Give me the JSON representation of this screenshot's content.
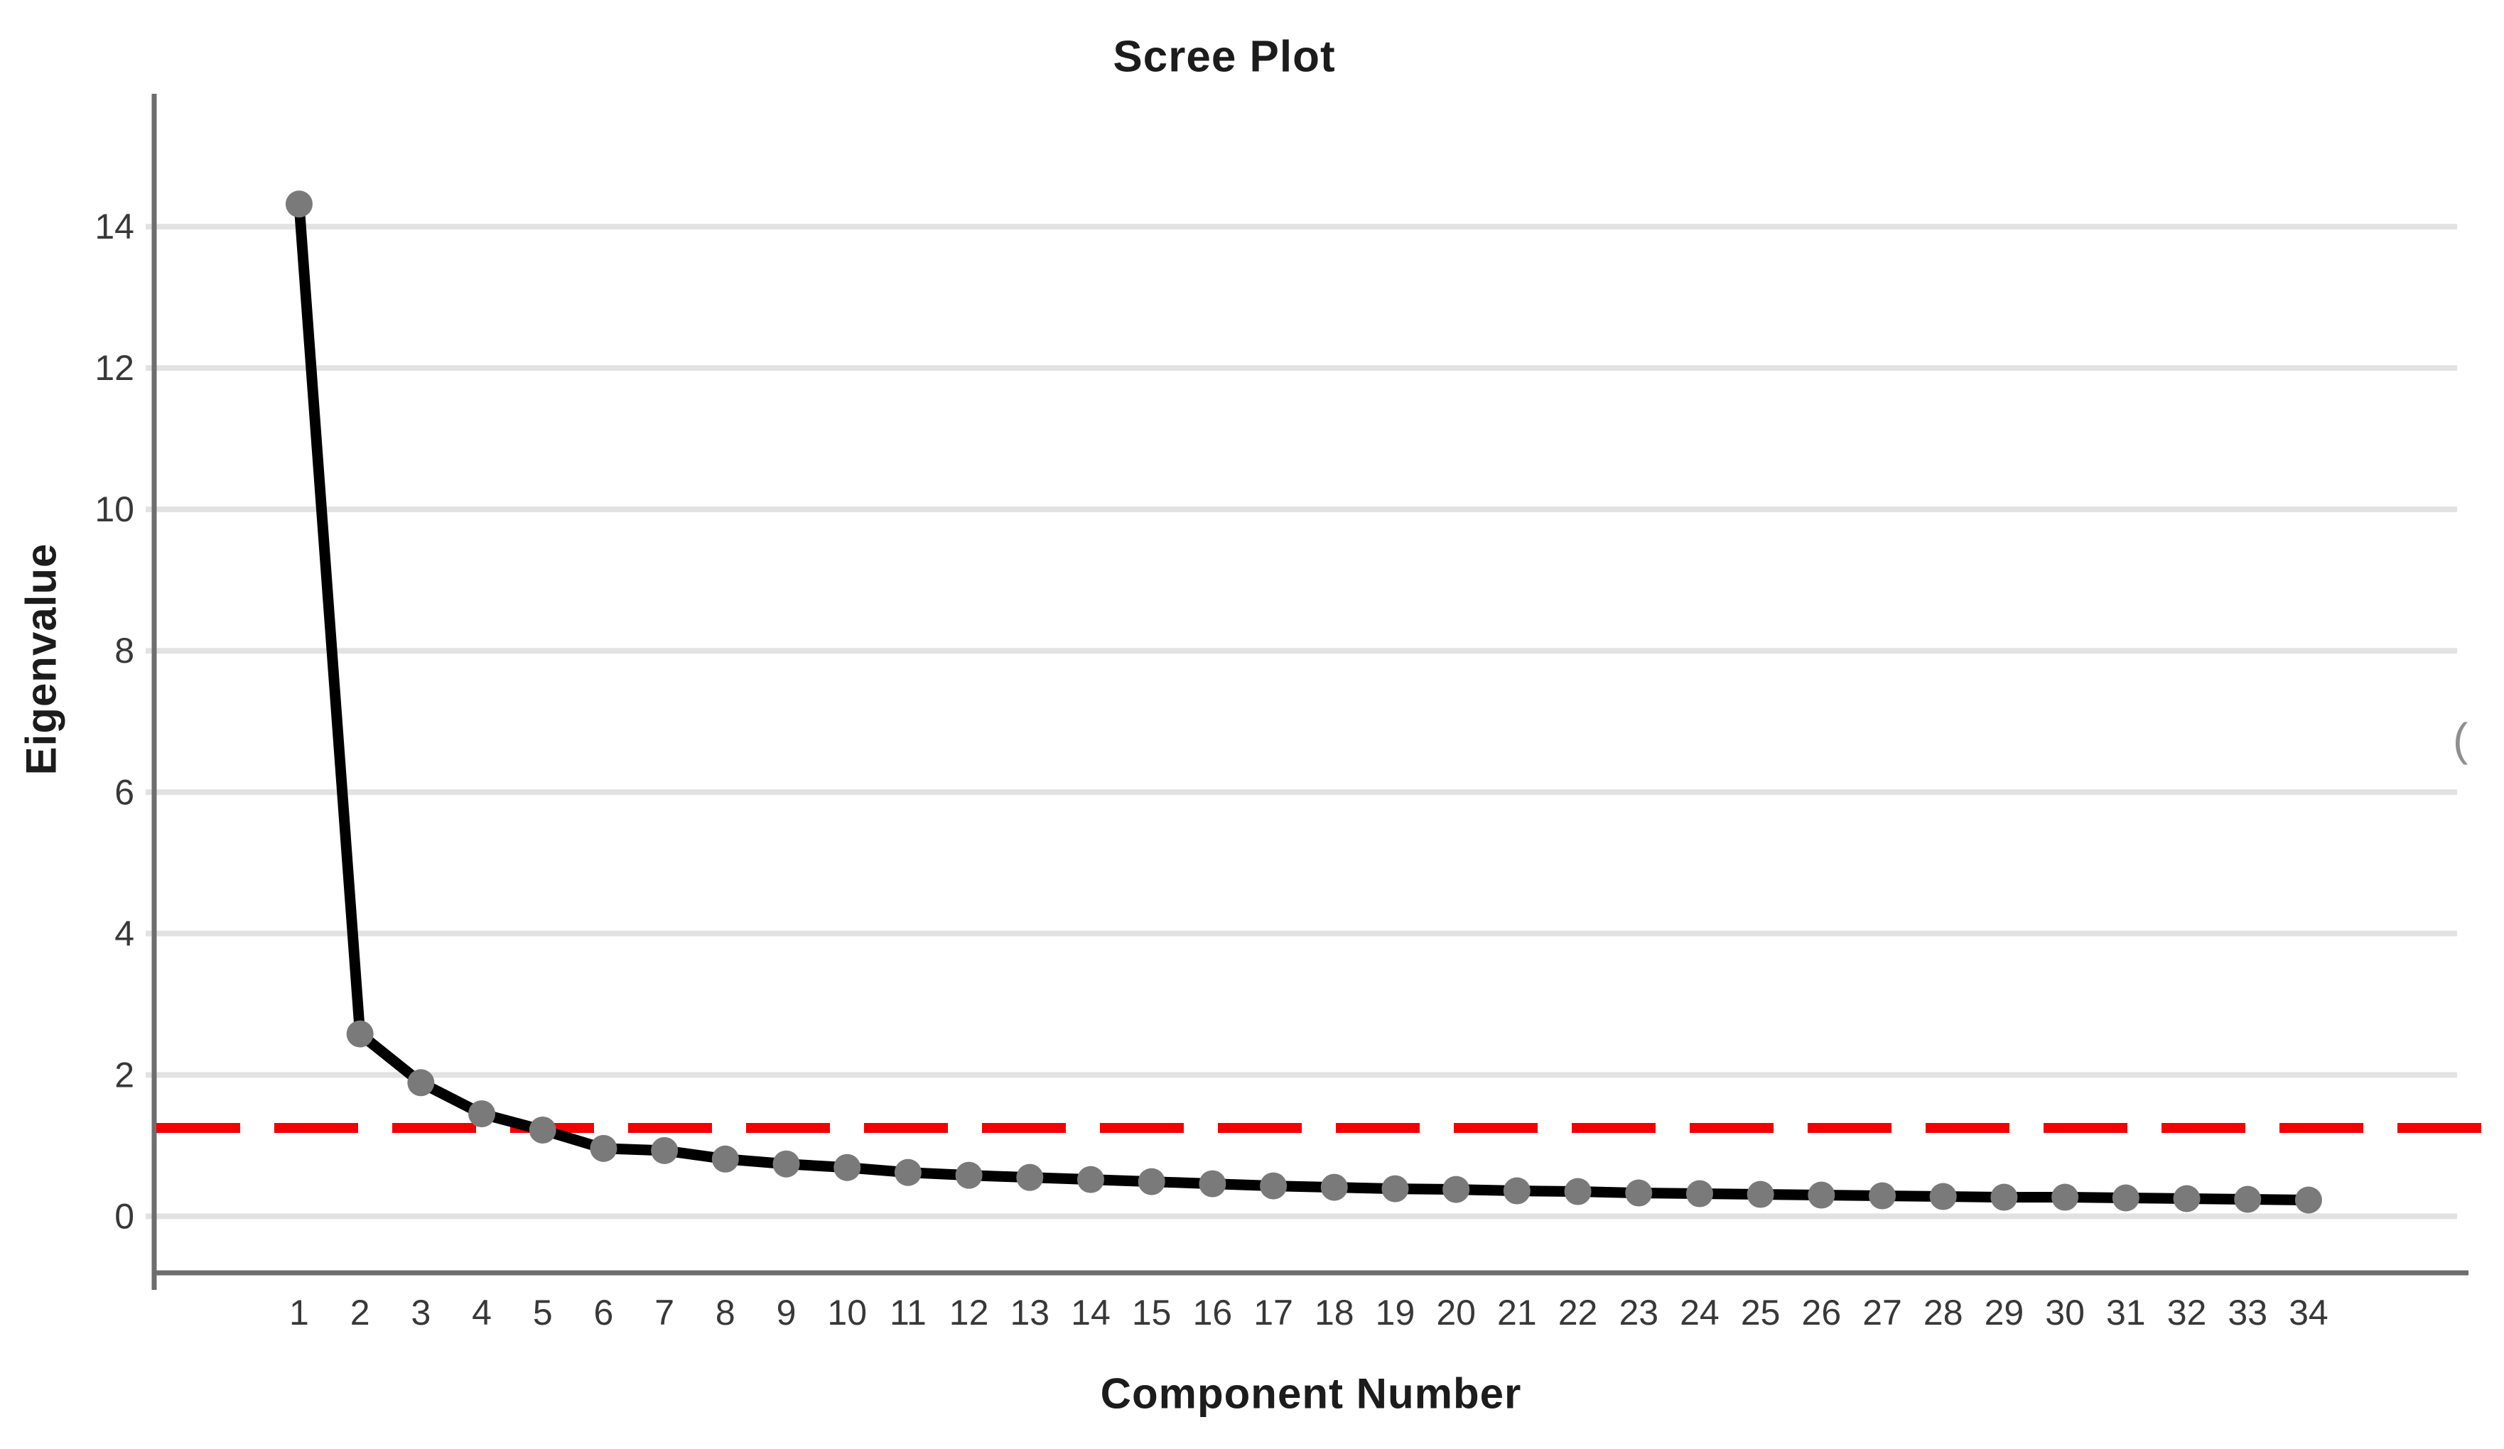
{
  "chart": {
    "title": "Scree Plot",
    "x_axis_label": "Component Number",
    "y_axis_label": "Eigenvalue",
    "right_edge_artifact": "("
  },
  "chart_data": {
    "type": "line",
    "title": "Scree Plot",
    "xlabel": "Component Number",
    "ylabel": "Eigenvalue",
    "x": [
      1,
      2,
      3,
      4,
      5,
      6,
      7,
      8,
      9,
      10,
      11,
      12,
      13,
      14,
      15,
      16,
      17,
      18,
      19,
      20,
      21,
      22,
      23,
      24,
      25,
      26,
      27,
      28,
      29,
      30,
      31,
      32,
      33,
      34
    ],
    "values": [
      14.32,
      2.58,
      1.89,
      1.45,
      1.22,
      0.96,
      0.93,
      0.81,
      0.74,
      0.69,
      0.62,
      0.58,
      0.55,
      0.52,
      0.49,
      0.46,
      0.43,
      0.41,
      0.39,
      0.38,
      0.36,
      0.35,
      0.33,
      0.32,
      0.31,
      0.3,
      0.29,
      0.28,
      0.27,
      0.27,
      0.26,
      0.25,
      0.24,
      0.23
    ],
    "yticks": [
      0,
      2,
      4,
      6,
      8,
      10,
      12,
      14
    ],
    "xlim": [
      -1.38,
      36.44
    ],
    "ylim": [
      -0.8,
      15.88
    ],
    "grid": "horizontal-only",
    "legend": "none",
    "marker": "circle",
    "reference_line": {
      "orientation": "horizontal",
      "value": 1.25,
      "style": "dashed",
      "color": "#f40000"
    },
    "colors": {
      "line": "#000000",
      "marker": "#7a7a7a",
      "gridline": "#e2e2e2",
      "axis": "#6e6e6e",
      "tick_label": "#383838",
      "title_text": "#1c1c1c",
      "reference_line": "#f40000",
      "background": "#ffffff"
    }
  }
}
